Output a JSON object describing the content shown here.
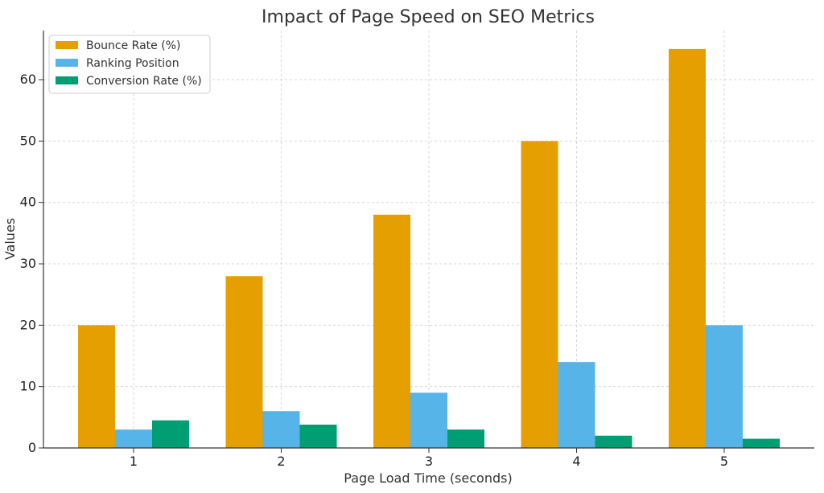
{
  "chart_data": {
    "type": "bar",
    "title": "Impact of Page Speed on SEO Metrics",
    "xlabel": "Page Load Time (seconds)",
    "ylabel": "Values",
    "categories": [
      "1",
      "2",
      "3",
      "4",
      "5"
    ],
    "ylim": [
      0,
      68
    ],
    "yticks": [
      "0",
      "10",
      "20",
      "30",
      "40",
      "50",
      "60"
    ],
    "grid": true,
    "legend_position": "top-left",
    "series": [
      {
        "name": "Bounce Rate (%)",
        "values": [
          20,
          28,
          38,
          50,
          65
        ],
        "color": "#E69F00"
      },
      {
        "name": "Ranking Position",
        "values": [
          3,
          6,
          9,
          14,
          20
        ],
        "color": "#56B4E9"
      },
      {
        "name": "Conversion Rate (%)",
        "values": [
          4.5,
          3.8,
          3,
          2,
          1.5
        ],
        "color": "#009E73"
      }
    ]
  }
}
